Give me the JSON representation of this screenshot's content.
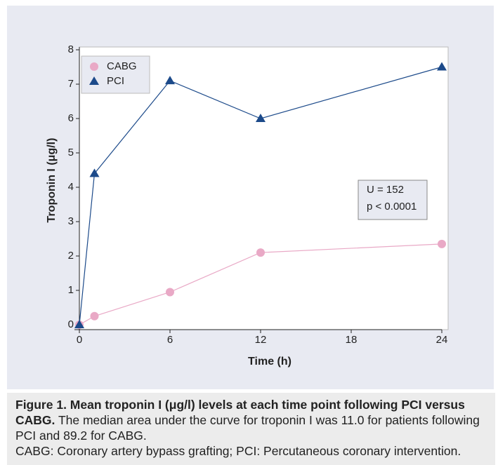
{
  "chart_data": {
    "type": "line",
    "x": [
      0,
      1,
      6,
      12,
      24
    ],
    "series": [
      {
        "name": "CABG",
        "color": "#e9a9c6",
        "marker": "circle",
        "values": [
          0,
          0.25,
          0.95,
          2.1,
          2.35
        ]
      },
      {
        "name": "PCI",
        "color": "#1c4a8a",
        "marker": "triangle",
        "values": [
          0,
          4.4,
          7.1,
          6.0,
          7.5
        ]
      }
    ],
    "xlabel": "Time (h)",
    "ylabel": "Troponin I (μg/l)",
    "xlim": [
      0,
      24
    ],
    "xticks": [
      0,
      6,
      12,
      18,
      24
    ],
    "ylim": [
      0,
      8
    ],
    "yticks": [
      0,
      1,
      2,
      3,
      4,
      5,
      6,
      7,
      8
    ],
    "legend": "upper left",
    "annotation": [
      "U = 152",
      "p < 0.0001"
    ]
  },
  "caption": {
    "bold": "Figure 1. Mean troponin I (μg/l) levels at each time point following PCI versus CABG.",
    "text": "The median area under the curve for troponin I was 11.0 for patients following PCI and 89.2 for CABG.",
    "abbreviations": "CABG: Coronary artery bypass grafting; PCI: Percutaneous coronary intervention."
  }
}
